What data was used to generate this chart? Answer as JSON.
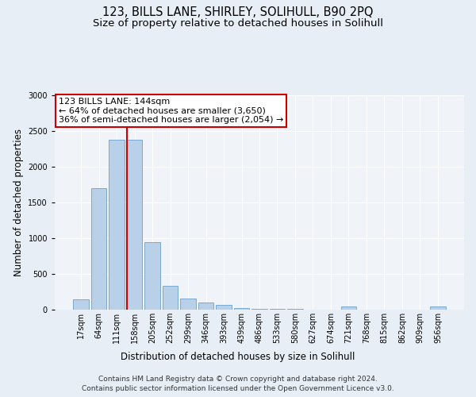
{
  "title": "123, BILLS LANE, SHIRLEY, SOLIHULL, B90 2PQ",
  "subtitle": "Size of property relative to detached houses in Solihull",
  "xlabel": "Distribution of detached houses by size in Solihull",
  "ylabel": "Number of detached properties",
  "categories": [
    "17sqm",
    "64sqm",
    "111sqm",
    "158sqm",
    "205sqm",
    "252sqm",
    "299sqm",
    "346sqm",
    "393sqm",
    "439sqm",
    "486sqm",
    "533sqm",
    "580sqm",
    "627sqm",
    "674sqm",
    "721sqm",
    "768sqm",
    "815sqm",
    "862sqm",
    "909sqm",
    "956sqm"
  ],
  "values": [
    150,
    1700,
    2380,
    2380,
    940,
    330,
    160,
    100,
    65,
    20,
    15,
    10,
    8,
    5,
    5,
    45,
    5,
    5,
    5,
    5,
    40
  ],
  "bar_color": "#b8d0e8",
  "bar_edgecolor": "#6aa0cc",
  "vline_x_index": 3,
  "vline_color": "#cc0000",
  "annotation_title": "123 BILLS LANE: 144sqm",
  "annotation_line1": "← 64% of detached houses are smaller (3,650)",
  "annotation_line2": "36% of semi-detached houses are larger (2,054) →",
  "annotation_box_color": "#cc0000",
  "ylim": [
    0,
    3000
  ],
  "yticks": [
    0,
    500,
    1000,
    1500,
    2000,
    2500,
    3000
  ],
  "footer1": "Contains HM Land Registry data © Crown copyright and database right 2024.",
  "footer2": "Contains public sector information licensed under the Open Government Licence v3.0.",
  "bg_color": "#e8eef5",
  "plot_bg_color": "#f0f4f8",
  "title_fontsize": 10.5,
  "subtitle_fontsize": 9.5,
  "axis_label_fontsize": 8.5,
  "tick_fontsize": 7,
  "footer_fontsize": 6.5,
  "annotation_fontsize": 8
}
